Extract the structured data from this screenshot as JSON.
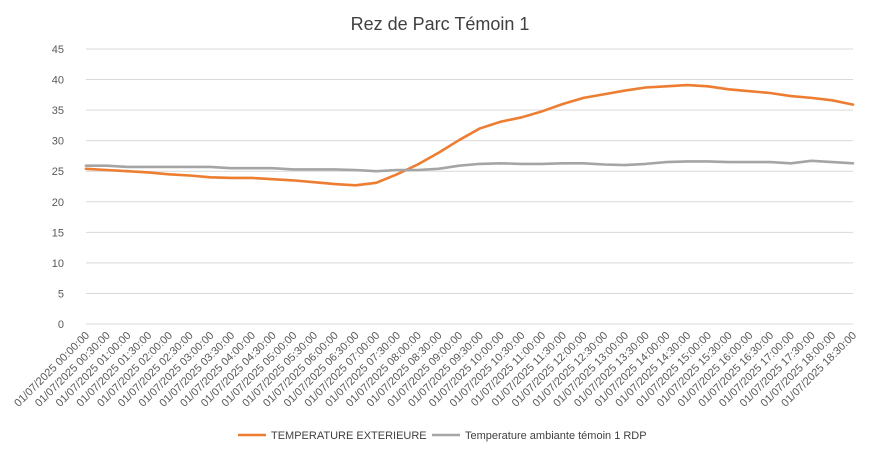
{
  "chart_data": {
    "type": "line",
    "title": "Rez de Parc Témoin 1",
    "xlabel": "",
    "ylabel": "",
    "ylim": [
      0,
      45
    ],
    "yticks": [
      0,
      5,
      10,
      15,
      20,
      25,
      30,
      35,
      40,
      45
    ],
    "grid": true,
    "legend_position": "bottom",
    "categories": [
      "01/07/2025 00:00:00",
      "01/07/2025 00:30:00",
      "01/07/2025 01:00:00",
      "01/07/2025 01:30:00",
      "01/07/2025 02:00:00",
      "01/07/2025 02:30:00",
      "01/07/2025 03:00:00",
      "01/07/2025 03:30:00",
      "01/07/2025 04:00:00",
      "01/07/2025 04:30:00",
      "01/07/2025 05:00:00",
      "01/07/2025 05:30:00",
      "01/07/2025 06:00:00",
      "01/07/2025 06:30:00",
      "01/07/2025 07:00:00",
      "01/07/2025 07:30:00",
      "01/07/2025 08:00:00",
      "01/07/2025 08:30:00",
      "01/07/2025 09:00:00",
      "01/07/2025 09:30:00",
      "01/07/2025 10:00:00",
      "01/07/2025 10:30:00",
      "01/07/2025 11:00:00",
      "01/07/2025 11:30:00",
      "01/07/2025 12:00:00",
      "01/07/2025 12:30:00",
      "01/07/2025 13:00:00",
      "01/07/2025 13:30:00",
      "01/07/2025 14:00:00",
      "01/07/2025 14:30:00",
      "01/07/2025 15:00:00",
      "01/07/2025 15:30:00",
      "01/07/2025 16:00:00",
      "01/07/2025 16:30:00",
      "01/07/2025 17:00:00",
      "01/07/2025 17:30:00",
      "01/07/2025 18:00:00",
      "01/07/2025 18:30:00"
    ],
    "series": [
      {
        "name": "TEMPERATURE EXTERIEURE",
        "color": "#ED7D31",
        "values": [
          25.4,
          25.2,
          25.0,
          24.8,
          24.5,
          24.3,
          24.0,
          23.9,
          23.9,
          23.7,
          23.5,
          23.2,
          22.9,
          22.7,
          23.1,
          24.5,
          26.1,
          28.0,
          30.1,
          32.0,
          33.1,
          33.8,
          34.8,
          36.0,
          37.0,
          37.6,
          38.2,
          38.7,
          38.9,
          39.1,
          38.9,
          38.4,
          38.1,
          37.8,
          37.3,
          37.0,
          36.6,
          35.9
        ]
      },
      {
        "name": "Temperature ambiante témoin 1 RDP",
        "color": "#A5A5A5",
        "values": [
          25.9,
          25.9,
          25.7,
          25.7,
          25.7,
          25.7,
          25.7,
          25.5,
          25.5,
          25.5,
          25.3,
          25.3,
          25.3,
          25.2,
          25.0,
          25.2,
          25.2,
          25.4,
          25.9,
          26.2,
          26.3,
          26.2,
          26.2,
          26.3,
          26.3,
          26.1,
          26.0,
          26.2,
          26.5,
          26.6,
          26.6,
          26.5,
          26.5,
          26.5,
          26.3,
          26.7,
          26.5,
          26.3
        ]
      }
    ]
  }
}
